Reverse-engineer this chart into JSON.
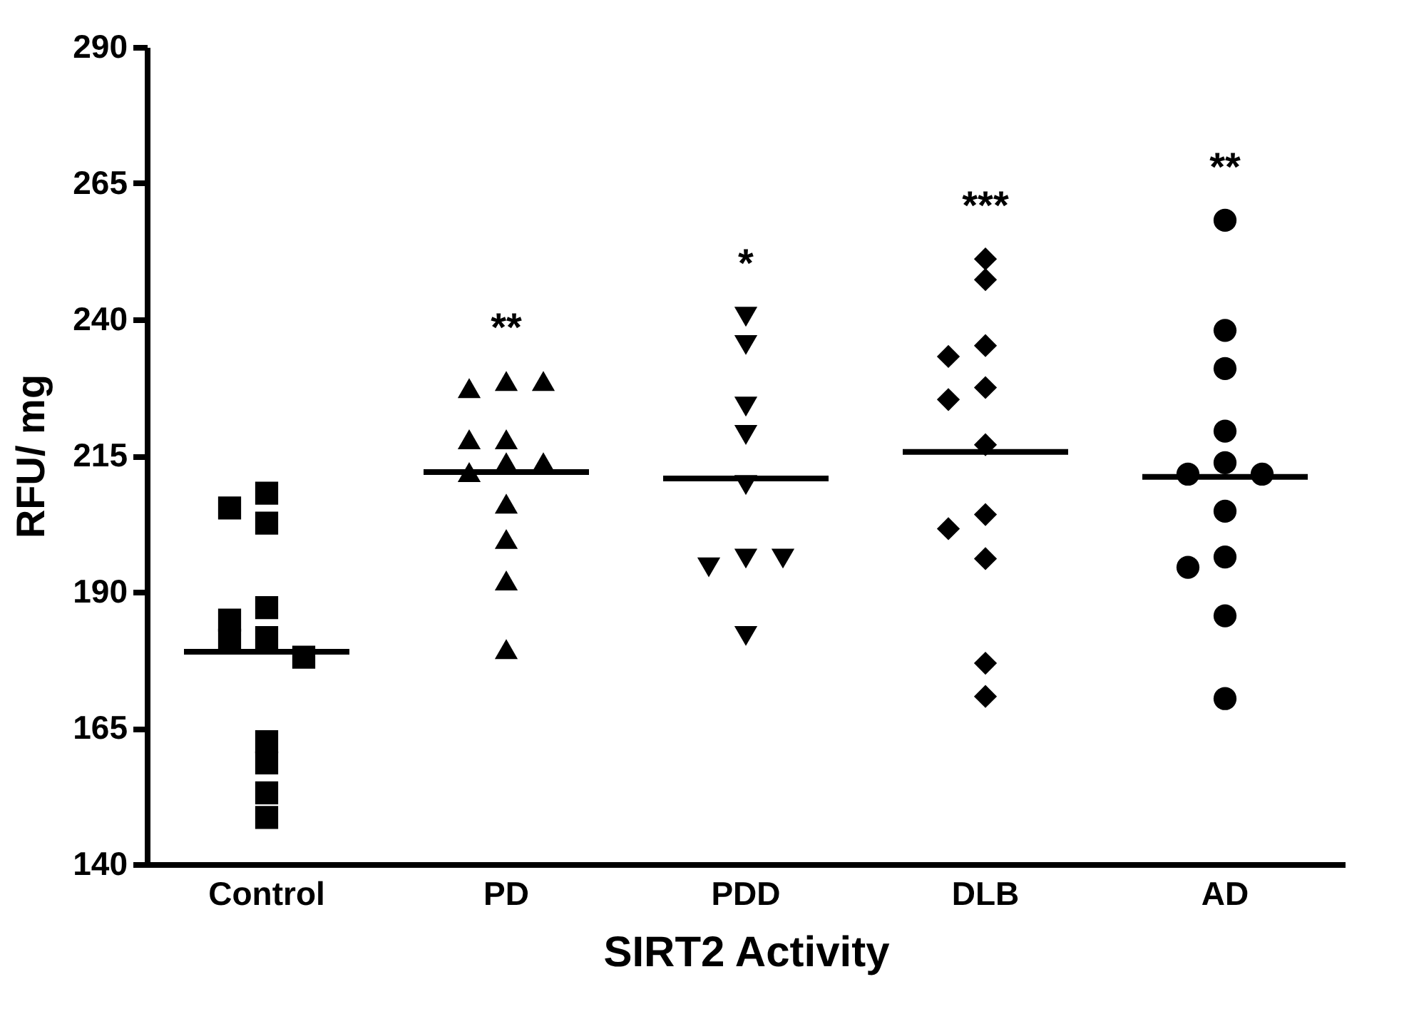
{
  "chart_data": {
    "type": "scatter",
    "xlabel": "SIRT2 Activity",
    "ylabel": "RFU/ mg",
    "categories": [
      "Control",
      "PD",
      "PDD",
      "DLB",
      "AD"
    ],
    "ylim": [
      140,
      290
    ],
    "yticks": [
      140,
      165,
      190,
      215,
      240,
      265,
      290
    ],
    "grid": false,
    "series": [
      {
        "type": "scatter",
        "marker": "square",
        "color": "#000000",
        "x": [
          "Control",
          "Control",
          "Control",
          "Control",
          "Control",
          "Control",
          "Control",
          "Control",
          "Control",
          "Control",
          "Control",
          "Control"
        ],
        "values": [
          208.1,
          205.4,
          202.6,
          187.1,
          184.8,
          181.6,
          181.1,
          178.0,
          162.5,
          158.6,
          153.1,
          148.6
        ]
      },
      {
        "type": "scatter",
        "marker": "triangle",
        "color": "#000000",
        "x": [
          "PD",
          "PD",
          "PD",
          "PD",
          "PD",
          "PD",
          "PD",
          "PD",
          "PD",
          "PD",
          "PD",
          "PD"
        ],
        "values": [
          228.7,
          227.4,
          228.7,
          218.0,
          218.0,
          213.8,
          212.0,
          213.8,
          206.2,
          199.7,
          192.1,
          179.5
        ]
      },
      {
        "type": "scatter",
        "marker": "triangle-down",
        "color": "#000000",
        "x": [
          "PDD",
          "PDD",
          "PDD",
          "PDD",
          "PDD",
          "PDD",
          "PDD",
          "PDD",
          "PDD"
        ],
        "values": [
          240.5,
          235.3,
          224.0,
          218.8,
          209.6,
          196.1,
          194.5,
          196.1,
          181.9
        ]
      },
      {
        "type": "scatter",
        "marker": "diamond",
        "color": "#000000",
        "x": [
          "DLB",
          "DLB",
          "DLB",
          "DLB",
          "DLB",
          "DLB",
          "DLB",
          "DLB",
          "DLB",
          "DLB",
          "DLB",
          "DLB"
        ],
        "values": [
          251.1,
          247.3,
          235.2,
          233.2,
          227.5,
          225.3,
          217.0,
          204.2,
          201.6,
          196.1,
          176.9,
          170.8
        ]
      },
      {
        "type": "scatter",
        "marker": "circle",
        "color": "#000000",
        "x": [
          "AD",
          "AD",
          "AD",
          "AD",
          "AD",
          "AD",
          "AD",
          "AD",
          "AD",
          "AD",
          "AD",
          "AD"
        ],
        "values": [
          258.2,
          238.0,
          231.0,
          219.5,
          213.7,
          211.6,
          211.6,
          204.8,
          196.4,
          194.5,
          185.6,
          170.4
        ]
      },
      {
        "type": "box",
        "color": "#000000",
        "boxes": [
          {
            "low": 179.0,
            "q1": 179.0,
            "median": 179.0,
            "q3": 179.0,
            "high": 179.0
          },
          {
            "low": 212.0,
            "q1": 212.0,
            "median": 212.0,
            "q3": 212.0,
            "high": 212.0
          },
          {
            "low": 210.8,
            "q1": 210.8,
            "median": 210.8,
            "q3": 210.8,
            "high": 210.8
          },
          {
            "low": 215.7,
            "q1": 215.7,
            "median": 215.7,
            "q3": 215.7,
            "high": 215.7
          },
          {
            "low": 211.1,
            "q1": 211.1,
            "median": 211.1,
            "q3": 211.1,
            "high": 211.1
          }
        ]
      }
    ],
    "annotations": [
      "**",
      "*",
      "***",
      "**"
    ]
  }
}
